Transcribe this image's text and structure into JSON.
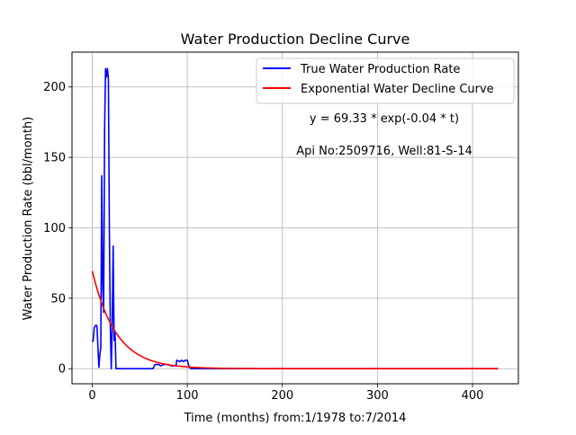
{
  "chart_data": {
    "type": "line",
    "title": "Water Production Decline Curve",
    "xlabel": "Time (months) from:1/1978 to:7/2014",
    "ylabel": "Water Production Rate (bbl/month)",
    "xlim": [
      -21.3,
      448.3
    ],
    "ylim": [
      -10.7,
      224.7
    ],
    "grid": true,
    "legend": "top-right",
    "x_ticks": [
      0,
      100,
      200,
      300,
      400
    ],
    "y_ticks": [
      0,
      50,
      100,
      150,
      200
    ],
    "annotations": [
      {
        "text": "y = 69.33 * exp(-0.04 * t)"
      },
      {
        "text": "Api No:2509716, Well:81-S-14"
      }
    ],
    "series": [
      {
        "name": "True Water Production Rate",
        "color": "#0000ff",
        "style": "solid",
        "points": [
          [
            0,
            19
          ],
          [
            1,
            20
          ],
          [
            2,
            29
          ],
          [
            3,
            30
          ],
          [
            4,
            31
          ],
          [
            5,
            30
          ],
          [
            6,
            15
          ],
          [
            7,
            1
          ],
          [
            8,
            10
          ],
          [
            9,
            15
          ],
          [
            10,
            137
          ],
          [
            11,
            60
          ],
          [
            12,
            40
          ],
          [
            13,
            170
          ],
          [
            14,
            213
          ],
          [
            15,
            207
          ],
          [
            16,
            213
          ],
          [
            17,
            206
          ],
          [
            18,
            100
          ],
          [
            19,
            30
          ],
          [
            20,
            0
          ],
          [
            21,
            30
          ],
          [
            22,
            87
          ],
          [
            23,
            20
          ],
          [
            24,
            25
          ],
          [
            25,
            0
          ],
          [
            40,
            0
          ],
          [
            64,
            0
          ],
          [
            66,
            3
          ],
          [
            70,
            3
          ],
          [
            72,
            2
          ],
          [
            75,
            3
          ],
          [
            80,
            3
          ],
          [
            83,
            2
          ],
          [
            88,
            2
          ],
          [
            89,
            6
          ],
          [
            92,
            5
          ],
          [
            94,
            6
          ],
          [
            96,
            5
          ],
          [
            98,
            6
          ],
          [
            100,
            6
          ],
          [
            102,
            1
          ],
          [
            104,
            0
          ],
          [
            110,
            0
          ],
          [
            150,
            0
          ],
          [
            250,
            0
          ],
          [
            350,
            0
          ],
          [
            427,
            0
          ]
        ]
      },
      {
        "name": "Exponential Water Decline Curve",
        "color": "#ff0000",
        "style": "solid",
        "model": {
          "a": 69.33,
          "b": -0.04,
          "t_start": 0,
          "t_end": 427
        }
      }
    ]
  }
}
